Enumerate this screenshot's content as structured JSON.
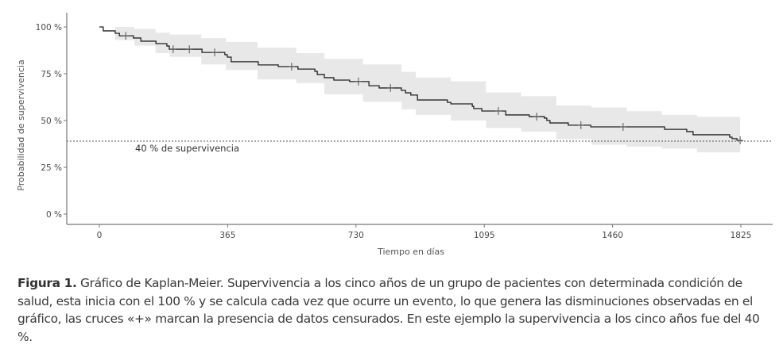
{
  "chart_data": {
    "type": "line",
    "subtype": "kaplan-meier-step",
    "title": "",
    "xlabel": "Tiempo en días",
    "ylabel": "Probabilidad de supervivencia",
    "xlim": [
      0,
      1825
    ],
    "ylim": [
      0,
      100
    ],
    "x_ticks": [
      0,
      365,
      730,
      1095,
      1460,
      1825
    ],
    "x_tick_labels": [
      "0",
      "365",
      "730",
      "1095",
      "1460",
      "1825"
    ],
    "y_ticks": [
      0,
      25,
      50,
      75,
      100
    ],
    "y_tick_labels": [
      "0 %",
      "25 %",
      "50 %",
      "75 %",
      "100 %"
    ],
    "grid": false,
    "series": [
      {
        "name": "Supervivencia",
        "color": "#222222",
        "steps": [
          [
            0,
            100
          ],
          [
            11,
            97.9
          ],
          [
            45,
            96.6
          ],
          [
            57,
            95.3
          ],
          [
            97,
            94.1
          ],
          [
            118,
            92.4
          ],
          [
            161,
            91.1
          ],
          [
            192,
            89.8
          ],
          [
            199,
            88.1
          ],
          [
            292,
            86.4
          ],
          [
            357,
            85.2
          ],
          [
            364,
            83.9
          ],
          [
            375,
            81.4
          ],
          [
            452,
            79.7
          ],
          [
            509,
            78.8
          ],
          [
            565,
            77.5
          ],
          [
            613,
            76.3
          ],
          [
            620,
            74.6
          ],
          [
            640,
            72.9
          ],
          [
            667,
            71.6
          ],
          [
            712,
            70.8
          ],
          [
            767,
            68.6
          ],
          [
            796,
            67.4
          ],
          [
            859,
            66.1
          ],
          [
            871,
            64.8
          ],
          [
            886,
            63.6
          ],
          [
            905,
            61.0
          ],
          [
            990,
            59.7
          ],
          [
            1000,
            58.9
          ],
          [
            1061,
            57.6
          ],
          [
            1065,
            56.4
          ],
          [
            1088,
            55.1
          ],
          [
            1156,
            53.0
          ],
          [
            1223,
            52.1
          ],
          [
            1266,
            51.3
          ],
          [
            1273,
            50.0
          ],
          [
            1282,
            48.7
          ],
          [
            1334,
            47.5
          ],
          [
            1398,
            46.6
          ],
          [
            1608,
            45.3
          ],
          [
            1671,
            44.1
          ],
          [
            1689,
            42.4
          ],
          [
            1793,
            41.1
          ],
          [
            1800,
            40.3
          ],
          [
            1814,
            39.4
          ]
        ],
        "end_time": 1823,
        "censored": [
          [
            75,
            95.3
          ],
          [
            210,
            88.1
          ],
          [
            256,
            88.1
          ],
          [
            328,
            86.4
          ],
          [
            547,
            78.8
          ],
          [
            737,
            70.8
          ],
          [
            828,
            67.4
          ],
          [
            1135,
            55.1
          ],
          [
            1244,
            52.1
          ],
          [
            1370,
            47.5
          ],
          [
            1490,
            46.6
          ],
          [
            1823,
            39.4
          ]
        ],
        "confidence_band": {
          "color": "#e8e8e8",
          "time": [
            0,
            45,
            100,
            160,
            200,
            290,
            360,
            450,
            560,
            640,
            750,
            860,
            900,
            1000,
            1100,
            1200,
            1300,
            1400,
            1500,
            1600,
            1700,
            1823
          ],
          "upper": [
            100,
            100,
            99,
            97,
            96,
            94,
            92,
            89,
            86,
            83,
            80,
            76,
            73,
            71,
            65,
            63,
            58,
            57,
            55,
            53,
            52,
            50
          ],
          "lower": [
            100,
            93,
            90,
            86,
            84,
            80,
            77,
            72,
            70,
            64,
            60,
            56,
            53,
            50,
            46,
            44,
            40,
            37,
            36,
            35,
            33,
            31
          ]
        }
      }
    ],
    "reference_line": {
      "y": 39,
      "style": "dotted",
      "color": "#555555",
      "label": "40 % de supervivencia"
    }
  },
  "caption": {
    "label": "Figura 1.",
    "text": " Gráfico de Kaplan-Meier. Supervivencia a los cinco años de un grupo de pacientes con determinada condición de salud, esta inicia con el 100 % y se calcula cada vez que ocurre un evento, lo que genera las dismi­nuciones observadas en el gráfico, las cruces «+» marcan la presencia de datos censurados. En este ejemplo la supervivencia a los cinco años fue del 40 %."
  }
}
